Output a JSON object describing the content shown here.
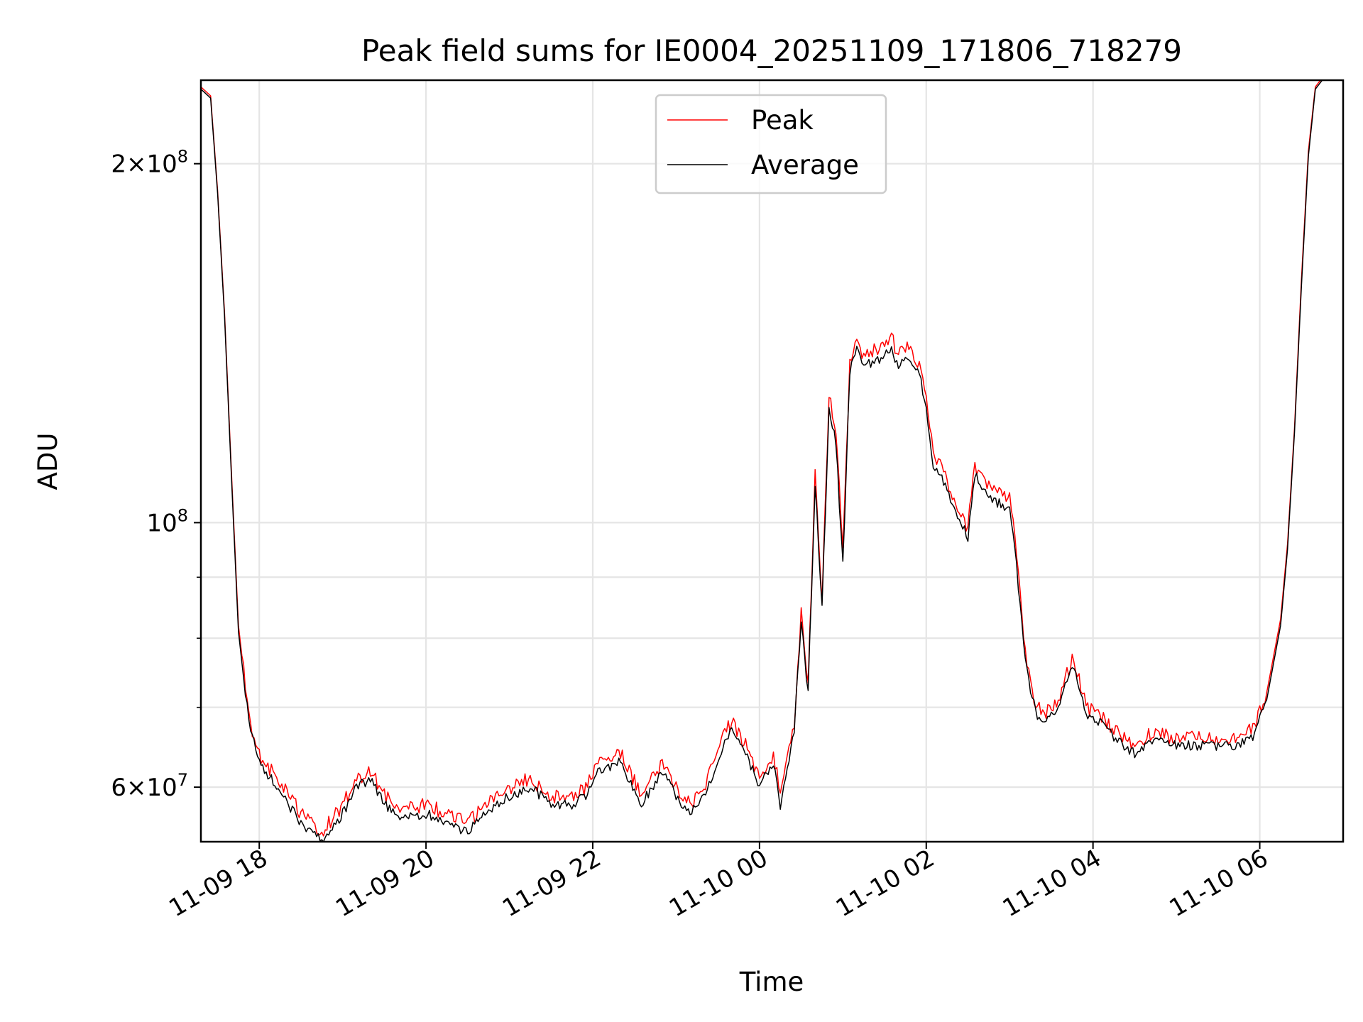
{
  "chart_data": {
    "type": "line",
    "title": "Peak field sums for IE0004_20251109_171806_718279",
    "xlabel": "Time",
    "ylabel": "ADU",
    "x_scale": "time",
    "y_scale": "log",
    "xlim": [
      "2025-11-09 17:18",
      "2025-11-10 07:00"
    ],
    "ylim": [
      54000000,
      235000000
    ],
    "grid": true,
    "legend_position": "upper center",
    "x_ticks": [
      {
        "value": "2025-11-09 18:00",
        "label": "11-09 18"
      },
      {
        "value": "2025-11-09 20:00",
        "label": "11-09 20"
      },
      {
        "value": "2025-11-09 22:00",
        "label": "11-09 22"
      },
      {
        "value": "2025-11-10 00:00",
        "label": "11-10 00"
      },
      {
        "value": "2025-11-10 02:00",
        "label": "11-10 02"
      },
      {
        "value": "2025-11-10 04:00",
        "label": "11-10 04"
      },
      {
        "value": "2025-11-10 06:00",
        "label": "11-10 06"
      }
    ],
    "y_ticks_major": [
      {
        "value": 60000000,
        "mant": "6",
        "exp": "7"
      },
      {
        "value": 100000000,
        "mant": "",
        "exp": "8"
      },
      {
        "value": 200000000,
        "mant": "2",
        "exp": "8"
      }
    ],
    "y_ticks_minor": [
      70000000,
      80000000,
      90000000
    ],
    "series": [
      {
        "name": "Peak",
        "color": "#ff0000",
        "noise": 0.016,
        "x": [
          "2025-11-09 17:18",
          "2025-11-09 17:25",
          "2025-11-09 17:30",
          "2025-11-09 17:35",
          "2025-11-09 17:40",
          "2025-11-09 17:45",
          "2025-11-09 17:50",
          "2025-11-09 17:55",
          "2025-11-09 18:00",
          "2025-11-09 18:15",
          "2025-11-09 18:30",
          "2025-11-09 18:45",
          "2025-11-09 19:00",
          "2025-11-09 19:10",
          "2025-11-09 19:20",
          "2025-11-09 19:30",
          "2025-11-09 19:45",
          "2025-11-09 20:00",
          "2025-11-09 20:15",
          "2025-11-09 20:30",
          "2025-11-09 20:45",
          "2025-11-09 21:00",
          "2025-11-09 21:15",
          "2025-11-09 21:30",
          "2025-11-09 21:45",
          "2025-11-09 21:55",
          "2025-11-09 22:05",
          "2025-11-09 22:20",
          "2025-11-09 22:35",
          "2025-11-09 22:50",
          "2025-11-09 23:00",
          "2025-11-09 23:10",
          "2025-11-09 23:20",
          "2025-11-09 23:30",
          "2025-11-09 23:35",
          "2025-11-09 23:40",
          "2025-11-09 23:50",
          "2025-11-10 00:00",
          "2025-11-10 00:10",
          "2025-11-10 00:15",
          "2025-11-10 00:25",
          "2025-11-10 00:30",
          "2025-11-10 00:35",
          "2025-11-10 00:40",
          "2025-11-10 00:45",
          "2025-11-10 00:50",
          "2025-11-10 00:55",
          "2025-11-10 01:00",
          "2025-11-10 01:05",
          "2025-11-10 01:10",
          "2025-11-10 01:15",
          "2025-11-10 01:20",
          "2025-11-10 01:25",
          "2025-11-10 01:30",
          "2025-11-10 01:35",
          "2025-11-10 01:40",
          "2025-11-10 01:45",
          "2025-11-10 01:50",
          "2025-11-10 01:55",
          "2025-11-10 02:00",
          "2025-11-10 02:05",
          "2025-11-10 02:10",
          "2025-11-10 02:15",
          "2025-11-10 02:20",
          "2025-11-10 02:25",
          "2025-11-10 02:30",
          "2025-11-10 02:35",
          "2025-11-10 02:40",
          "2025-11-10 02:45",
          "2025-11-10 02:50",
          "2025-11-10 03:00",
          "2025-11-10 03:05",
          "2025-11-10 03:10",
          "2025-11-10 03:15",
          "2025-11-10 03:20",
          "2025-11-10 03:25",
          "2025-11-10 03:35",
          "2025-11-10 03:45",
          "2025-11-10 03:50",
          "2025-11-10 03:55",
          "2025-11-10 04:05",
          "2025-11-10 04:15",
          "2025-11-10 04:30",
          "2025-11-10 04:45",
          "2025-11-10 04:55",
          "2025-11-10 05:05",
          "2025-11-10 05:20",
          "2025-11-10 05:40",
          "2025-11-10 05:55",
          "2025-11-10 06:05",
          "2025-11-10 06:15",
          "2025-11-10 06:20",
          "2025-11-10 06:25",
          "2025-11-10 06:30",
          "2025-11-10 06:35",
          "2025-11-10 06:40",
          "2025-11-10 06:45",
          "2025-11-10 06:50",
          "2025-11-10 07:00"
        ],
        "y": [
          232000000,
          228000000,
          190000000,
          150000000,
          110000000,
          82000000,
          73000000,
          67000000,
          64000000,
          60500000,
          57000000,
          55000000,
          58000000,
          61000000,
          62000000,
          59000000,
          57500000,
          58000000,
          57000000,
          56000000,
          58500000,
          60000000,
          61000000,
          59000000,
          59000000,
          60000000,
          63000000,
          64000000,
          59000000,
          63000000,
          60000000,
          58000000,
          60000000,
          64000000,
          67000000,
          68000000,
          65000000,
          61000000,
          64000000,
          59000000,
          68000000,
          84000000,
          73000000,
          110000000,
          86000000,
          128000000,
          120000000,
          95000000,
          137000000,
          143000000,
          138000000,
          139000000,
          140000000,
          141000000,
          143000000,
          138000000,
          140000000,
          139000000,
          136000000,
          128000000,
          115000000,
          112000000,
          108000000,
          105000000,
          102000000,
          99000000,
          112000000,
          109000000,
          107000000,
          106000000,
          105000000,
          94000000,
          80000000,
          73000000,
          70000000,
          69000000,
          71000000,
          77000000,
          74000000,
          70000000,
          69000000,
          67000000,
          65000000,
          67000000,
          66000000,
          66000000,
          66000000,
          66000000,
          67000000,
          72000000,
          83000000,
          96000000,
          120000000,
          160000000,
          205000000,
          232000000,
          236000000,
          236000000,
          236000000
        ]
      },
      {
        "name": "Average",
        "color": "#000000",
        "noise": 0.011,
        "x": [
          "2025-11-09 17:18",
          "2025-11-09 17:25",
          "2025-11-09 17:30",
          "2025-11-09 17:35",
          "2025-11-09 17:40",
          "2025-11-09 17:45",
          "2025-11-09 17:50",
          "2025-11-09 17:55",
          "2025-11-09 18:00",
          "2025-11-09 18:15",
          "2025-11-09 18:30",
          "2025-11-09 18:45",
          "2025-11-09 19:00",
          "2025-11-09 19:10",
          "2025-11-09 19:20",
          "2025-11-09 19:30",
          "2025-11-09 19:45",
          "2025-11-09 20:00",
          "2025-11-09 20:15",
          "2025-11-09 20:30",
          "2025-11-09 20:45",
          "2025-11-09 21:00",
          "2025-11-09 21:15",
          "2025-11-09 21:30",
          "2025-11-09 21:45",
          "2025-11-09 21:55",
          "2025-11-09 22:05",
          "2025-11-09 22:20",
          "2025-11-09 22:35",
          "2025-11-09 22:50",
          "2025-11-09 23:00",
          "2025-11-09 23:10",
          "2025-11-09 23:20",
          "2025-11-09 23:30",
          "2025-11-09 23:35",
          "2025-11-09 23:40",
          "2025-11-09 23:50",
          "2025-11-10 00:00",
          "2025-11-10 00:10",
          "2025-11-10 00:15",
          "2025-11-10 00:25",
          "2025-11-10 00:30",
          "2025-11-10 00:35",
          "2025-11-10 00:40",
          "2025-11-10 00:45",
          "2025-11-10 00:50",
          "2025-11-10 00:55",
          "2025-11-10 01:00",
          "2025-11-10 01:05",
          "2025-11-10 01:10",
          "2025-11-10 01:15",
          "2025-11-10 01:20",
          "2025-11-10 01:25",
          "2025-11-10 01:30",
          "2025-11-10 01:35",
          "2025-11-10 01:40",
          "2025-11-10 01:45",
          "2025-11-10 01:50",
          "2025-11-10 01:55",
          "2025-11-10 02:00",
          "2025-11-10 02:05",
          "2025-11-10 02:10",
          "2025-11-10 02:15",
          "2025-11-10 02:20",
          "2025-11-10 02:25",
          "2025-11-10 02:30",
          "2025-11-10 02:35",
          "2025-11-10 02:40",
          "2025-11-10 02:45",
          "2025-11-10 02:50",
          "2025-11-10 03:00",
          "2025-11-10 03:05",
          "2025-11-10 03:10",
          "2025-11-10 03:15",
          "2025-11-10 03:20",
          "2025-11-10 03:25",
          "2025-11-10 03:35",
          "2025-11-10 03:45",
          "2025-11-10 03:50",
          "2025-11-10 03:55",
          "2025-11-10 04:05",
          "2025-11-10 04:15",
          "2025-11-10 04:30",
          "2025-11-10 04:45",
          "2025-11-10 04:55",
          "2025-11-10 05:05",
          "2025-11-10 05:20",
          "2025-11-10 05:40",
          "2025-11-10 05:55",
          "2025-11-10 06:05",
          "2025-11-10 06:15",
          "2025-11-10 06:20",
          "2025-11-10 06:25",
          "2025-11-10 06:30",
          "2025-11-10 06:35",
          "2025-11-10 06:40",
          "2025-11-10 06:45",
          "2025-11-10 06:50",
          "2025-11-10 07:00"
        ],
        "y": [
          231000000,
          227000000,
          189000000,
          149000000,
          109000000,
          81000000,
          72000000,
          66000000,
          63000000,
          59500000,
          56000000,
          54000000,
          57000000,
          60000000,
          61000000,
          58000000,
          56500000,
          57000000,
          56000000,
          55000000,
          57500000,
          59000000,
          60000000,
          58000000,
          58000000,
          59000000,
          62000000,
          63000000,
          58000000,
          62000000,
          59000000,
          57000000,
          59000000,
          63000000,
          66000000,
          67000000,
          64000000,
          60000000,
          63000000,
          58000000,
          67000000,
          83000000,
          72000000,
          108000000,
          85000000,
          125000000,
          117000000,
          92000000,
          134000000,
          140000000,
          135000000,
          136000000,
          137000000,
          138000000,
          140000000,
          135000000,
          137000000,
          136000000,
          133000000,
          125000000,
          112000000,
          110000000,
          106000000,
          103000000,
          100000000,
          97000000,
          110000000,
          107000000,
          105000000,
          104000000,
          103000000,
          92000000,
          79000000,
          72000000,
          69000000,
          68000000,
          70000000,
          76000000,
          73000000,
          69000000,
          68000000,
          66000000,
          64000000,
          66000000,
          65000000,
          65000000,
          65000000,
          65000000,
          66000000,
          71000000,
          82000000,
          95000000,
          119000000,
          158000000,
          203000000,
          231000000,
          235000000,
          235000000,
          235000000
        ]
      }
    ]
  }
}
